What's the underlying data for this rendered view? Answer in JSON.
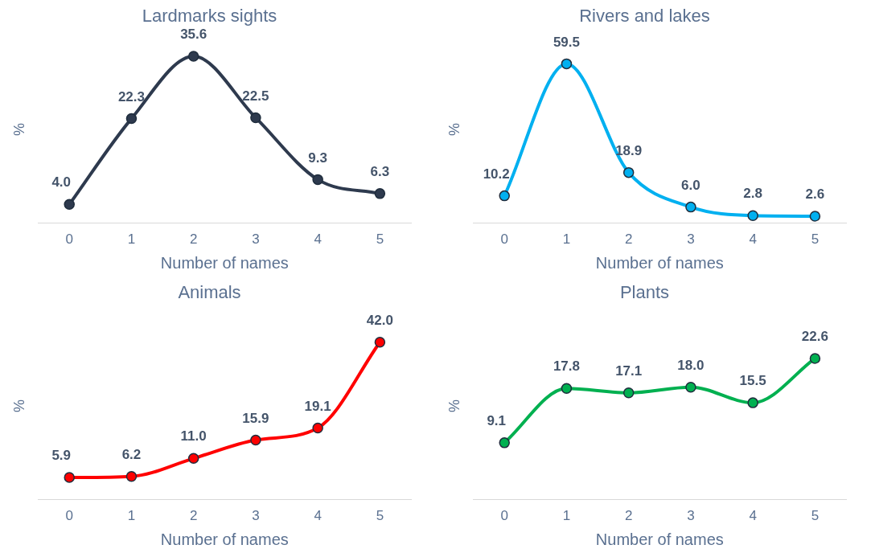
{
  "chart_data": [
    {
      "type": "line",
      "title": "Lardmarks sights",
      "xlabel": "Number of names",
      "ylabel": "%",
      "categories": [
        "0",
        "1",
        "2",
        "3",
        "4",
        "5"
      ],
      "series": [
        {
          "color": "#2e3a4e",
          "values": [
            4.0,
            22.3,
            35.6,
            22.5,
            9.3,
            6.3
          ],
          "value_labels": [
            "4.0",
            "22.3",
            "35.6",
            "22.5",
            "9.3",
            "6.3"
          ]
        }
      ],
      "marker": "circle",
      "legend": false,
      "grid": false,
      "tick_labels": "x"
    },
    {
      "type": "line",
      "title": "Rivers and lakes",
      "xlabel": "Number of names",
      "ylabel": "%",
      "categories": [
        "0",
        "1",
        "2",
        "3",
        "4",
        "5"
      ],
      "series": [
        {
          "color": "#00b0f0",
          "values": [
            10.2,
            59.5,
            18.9,
            6.0,
            2.8,
            2.6
          ],
          "value_labels": [
            "10.2",
            "59.5",
            "18.9",
            "6.0",
            "2.8",
            "2.6"
          ]
        }
      ],
      "marker": "circle",
      "legend": false,
      "grid": false,
      "tick_labels": "x"
    },
    {
      "type": "line",
      "title": "Animals",
      "xlabel": "Number of names",
      "ylabel": "%",
      "categories": [
        "0",
        "1",
        "2",
        "3",
        "4",
        "5"
      ],
      "series": [
        {
          "color": "#ff0000",
          "values": [
            5.9,
            6.2,
            11.0,
            15.9,
            19.1,
            42.0
          ],
          "value_labels": [
            "5.9",
            "6.2",
            "11.0",
            "15.9",
            "19.1",
            "42.0"
          ]
        }
      ],
      "marker": "circle",
      "legend": false,
      "grid": false,
      "tick_labels": "x"
    },
    {
      "type": "line",
      "title": "Plants",
      "xlabel": "Number of names",
      "ylabel": "%",
      "categories": [
        "0",
        "1",
        "2",
        "3",
        "4",
        "5"
      ],
      "series": [
        {
          "color": "#00b050",
          "values": [
            9.1,
            17.8,
            17.1,
            18.0,
            15.5,
            22.6
          ],
          "value_labels": [
            "9.1",
            "17.8",
            "17.1",
            "18.0",
            "15.5",
            "22.6"
          ]
        }
      ],
      "marker": "circle",
      "legend": false,
      "grid": false,
      "tick_labels": "x"
    }
  ]
}
